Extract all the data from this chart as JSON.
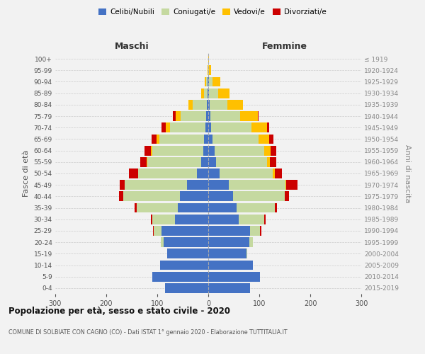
{
  "age_groups": [
    "0-4",
    "5-9",
    "10-14",
    "15-19",
    "20-24",
    "25-29",
    "30-34",
    "35-39",
    "40-44",
    "45-49",
    "50-54",
    "55-59",
    "60-64",
    "65-69",
    "70-74",
    "75-79",
    "80-84",
    "85-89",
    "90-94",
    "95-99",
    "100+"
  ],
  "birth_years": [
    "2015-2019",
    "2010-2014",
    "2005-2009",
    "2000-2004",
    "1995-1999",
    "1990-1994",
    "1985-1989",
    "1980-1984",
    "1975-1979",
    "1970-1974",
    "1965-1969",
    "1960-1964",
    "1955-1959",
    "1950-1954",
    "1945-1949",
    "1940-1944",
    "1935-1939",
    "1930-1934",
    "1925-1929",
    "1920-1924",
    "≤ 1919"
  ],
  "males": {
    "celibe": [
      85,
      110,
      95,
      80,
      88,
      92,
      65,
      60,
      55,
      42,
      22,
      14,
      10,
      8,
      5,
      4,
      3,
      1,
      1,
      0,
      0
    ],
    "coniugato": [
      0,
      0,
      0,
      0,
      5,
      15,
      45,
      80,
      112,
      122,
      115,
      105,
      100,
      88,
      70,
      50,
      28,
      8,
      3,
      0,
      0
    ],
    "vedovo": [
      0,
      0,
      0,
      0,
      0,
      0,
      0,
      0,
      0,
      0,
      1,
      2,
      3,
      5,
      8,
      10,
      8,
      5,
      3,
      1,
      0
    ],
    "divorziato": [
      0,
      0,
      0,
      0,
      0,
      2,
      2,
      5,
      8,
      10,
      18,
      12,
      12,
      10,
      8,
      5,
      0,
      0,
      0,
      0,
      0
    ]
  },
  "females": {
    "nubile": [
      82,
      102,
      88,
      75,
      80,
      82,
      60,
      55,
      48,
      40,
      22,
      15,
      12,
      8,
      5,
      4,
      3,
      2,
      1,
      0,
      0
    ],
    "coniugata": [
      0,
      0,
      0,
      2,
      8,
      20,
      50,
      75,
      102,
      112,
      105,
      100,
      98,
      90,
      80,
      58,
      35,
      18,
      8,
      2,
      0
    ],
    "vedova": [
      0,
      0,
      0,
      0,
      0,
      0,
      0,
      0,
      0,
      1,
      3,
      6,
      12,
      22,
      30,
      35,
      30,
      22,
      15,
      4,
      2
    ],
    "divorziata": [
      0,
      0,
      0,
      0,
      0,
      2,
      2,
      5,
      8,
      22,
      15,
      12,
      12,
      8,
      5,
      2,
      0,
      0,
      0,
      0,
      0
    ]
  },
  "colors": {
    "celibe_nubile": "#4472c4",
    "coniugato_a": "#c5d9a0",
    "vedovo_a": "#ffc000",
    "divorziato_a": "#cc0000"
  },
  "xlim": 300,
  "title": "Popolazione per età, sesso e stato civile - 2020",
  "subtitle": "COMUNE DI SOLBIATE CON CAGNO (CO) - Dati ISTAT 1° gennaio 2020 - Elaborazione TUTTITALIA.IT",
  "ylabel_left": "Fasce di età",
  "ylabel_right": "Anni di nascita",
  "xlabel_left": "Maschi",
  "xlabel_right": "Femmine",
  "bg_color": "#f2f2f2",
  "bar_height": 0.85
}
